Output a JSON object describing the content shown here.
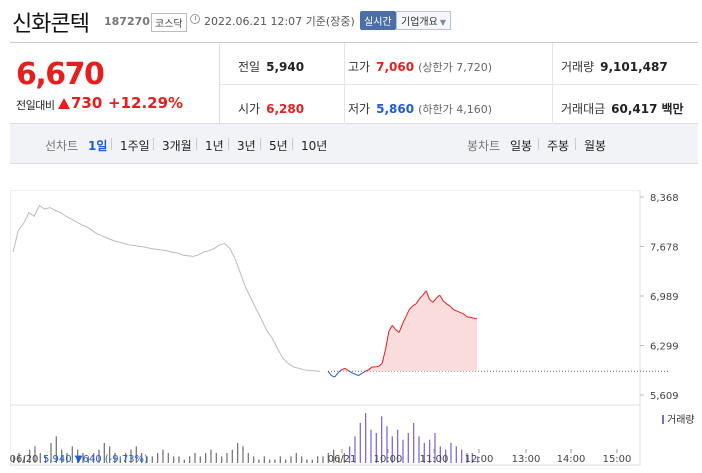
{
  "header": {
    "name": "신화콘텍",
    "code": "187270",
    "market": "코스닥",
    "timestamp": "2022.06.21 12:07 기준(장중)",
    "realtime": "실시간",
    "company_info": "기업개요"
  },
  "summary": {
    "price": "6,670",
    "change_label": "전일대비",
    "change_abs": "730",
    "change_pct": "+12.29%",
    "prev_close_label": "전일",
    "prev_close": "5,940",
    "high_label": "고가",
    "high": "7,060",
    "upper_limit_label": "(상한가 7,720)",
    "volume_label": "거래량",
    "volume": "9,101,487",
    "open_label": "시가",
    "open": "6,280",
    "low_label": "저가",
    "low": "5,860",
    "lower_limit_label": "(하한가 4,160)",
    "amount_label": "거래대금",
    "amount": "60,417",
    "amount_unit": "백만"
  },
  "tabs": {
    "line_title": "선차트",
    "line_periods": [
      "1일",
      "1주일",
      "3개월",
      "1년",
      "3년",
      "5년",
      "10년"
    ],
    "active_period": "1일",
    "candle_title": "봉차트",
    "candle_periods": [
      "일봉",
      "주봉",
      "월봉"
    ]
  },
  "colors": {
    "up": "#e51e1e",
    "down": "#1f5bd6",
    "accent": "#4c6fa8",
    "prev_line": "#bbbbbb",
    "volume": "#7b6fd4"
  },
  "chart_data": {
    "type": "line",
    "y_ticks": [
      "8,368",
      "7,678",
      "6,989",
      "6,299",
      "5,609"
    ],
    "ylim": [
      5609,
      8368
    ],
    "x_tick_labels": [
      "06/20",
      "06/21",
      "10:00",
      "11:00",
      "12:00",
      "13:00",
      "14:00",
      "15:00"
    ],
    "prev_day_label": "06/20",
    "prev_day_close": "5,940",
    "prev_day_change": "640",
    "prev_day_change_pct": "(-9.73%)",
    "reference_price": 5940,
    "volume_label": "거래량",
    "series": [
      {
        "values": [
          7600,
          7900,
          8000,
          8150,
          8100,
          8250,
          8200,
          8220,
          8180,
          8150,
          8100,
          8060,
          8020,
          7980,
          7950,
          7900,
          7850,
          7820,
          7790,
          7760,
          7740,
          7720,
          7700,
          7690,
          7680,
          7670,
          7650,
          7640,
          7630,
          7620,
          7600,
          7590,
          7560,
          7550,
          7540,
          7560,
          7600,
          7620,
          7650,
          7700,
          7720,
          7650,
          7500,
          7300,
          7100,
          6950,
          6800,
          6650,
          6500,
          6400,
          6250,
          6120,
          6050,
          6000,
          5980,
          5960,
          5950,
          5945,
          5940
        ]
      },
      {
        "values": [
          5940,
          5880,
          5860,
          5920,
          5960,
          5980,
          5950,
          5920,
          5900,
          5880,
          5910,
          5940,
          5960,
          6000,
          6000,
          6010,
          6050,
          6250,
          6500,
          6580,
          6520,
          6480,
          6600,
          6700,
          6800,
          6850,
          6880,
          6950,
          7000,
          7060,
          6940,
          6900,
          6960,
          7000,
          6920,
          6880,
          6850,
          6800,
          6780,
          6760,
          6740,
          6700,
          6690,
          6680,
          6670
        ]
      }
    ],
    "volume": [
      2,
      3,
      2,
      4,
      5,
      3,
      2,
      6,
      8,
      4,
      3,
      5,
      4,
      3,
      2,
      3,
      4,
      6,
      5,
      3,
      2,
      3,
      4,
      5,
      3,
      2,
      2,
      3,
      4,
      3,
      2,
      2,
      1,
      2,
      3,
      2,
      3,
      4,
      3,
      2,
      3,
      4,
      6,
      5,
      3,
      2,
      1,
      2,
      1,
      1,
      2,
      1,
      2,
      3,
      2,
      1,
      1,
      2,
      2,
      3,
      4,
      2,
      3,
      5,
      8,
      12,
      15,
      10,
      9,
      14,
      11,
      8,
      10,
      7,
      9,
      12,
      8,
      6,
      7,
      9,
      5,
      4,
      6,
      5,
      4,
      3,
      3,
      2
    ]
  }
}
